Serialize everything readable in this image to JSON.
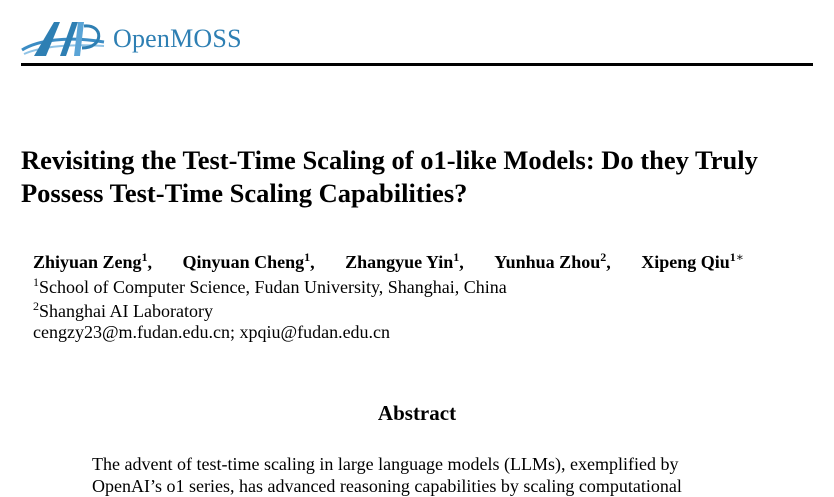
{
  "header": {
    "logo_text": "OpenMOSS"
  },
  "paper": {
    "title": "Revisiting the Test-Time Scaling of o1-like Models: Do they Truly Possess Test-Time Scaling Capabilities?",
    "authors": [
      {
        "name": "Zhiyuan Zeng",
        "aff": "1"
      },
      {
        "name": "Qinyuan Cheng",
        "aff": "1"
      },
      {
        "name": "Zhangyue Yin",
        "aff": "1"
      },
      {
        "name": "Yunhua Zhou",
        "aff": "2"
      },
      {
        "name": "Xipeng Qiu",
        "aff": "1",
        "mark": "∗"
      }
    ],
    "affiliations": [
      {
        "num": "1",
        "text": "School of Computer Science, Fudan University, Shanghai, China"
      },
      {
        "num": "2",
        "text": "Shanghai AI Laboratory"
      }
    ],
    "emails": "cengzy23@m.fudan.edu.cn; xpqiu@fudan.edu.cn",
    "abstract_heading": "Abstract",
    "abstract_text": "The advent of test-time scaling in large language models (LLMs), exemplified by OpenAI’s o1 series, has advanced reasoning capabilities by scaling computational"
  }
}
